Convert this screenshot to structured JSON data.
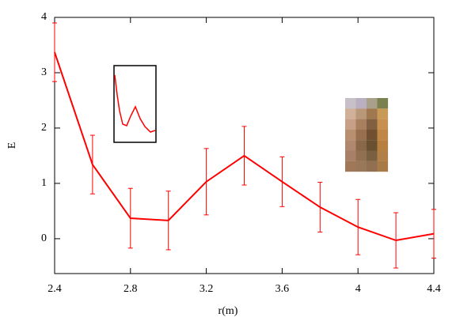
{
  "chart_data": {
    "type": "line",
    "x_label": "r(m)",
    "y_label": "E",
    "x": [
      2.4,
      2.6,
      2.8,
      3.0,
      3.2,
      3.4,
      3.6,
      3.8,
      4.0,
      4.2,
      4.4
    ],
    "series": [
      {
        "color": "#ff0000",
        "values": [
          3.37,
          1.34,
          0.37,
          0.33,
          1.03,
          1.5,
          1.03,
          0.57,
          0.21,
          -0.03,
          0.09
        ],
        "errors": [
          0.53,
          0.53,
          0.54,
          0.53,
          0.6,
          0.53,
          0.45,
          0.45,
          0.5,
          0.5,
          0.44
        ]
      }
    ],
    "xlim": [
      2.4,
      4.4
    ],
    "xticks": [
      2.4,
      2.8,
      3.2,
      3.6,
      4,
      4.4
    ],
    "ylim": [
      -0.63,
      4
    ],
    "yticks": [
      0,
      1,
      2,
      3,
      4
    ]
  }
}
